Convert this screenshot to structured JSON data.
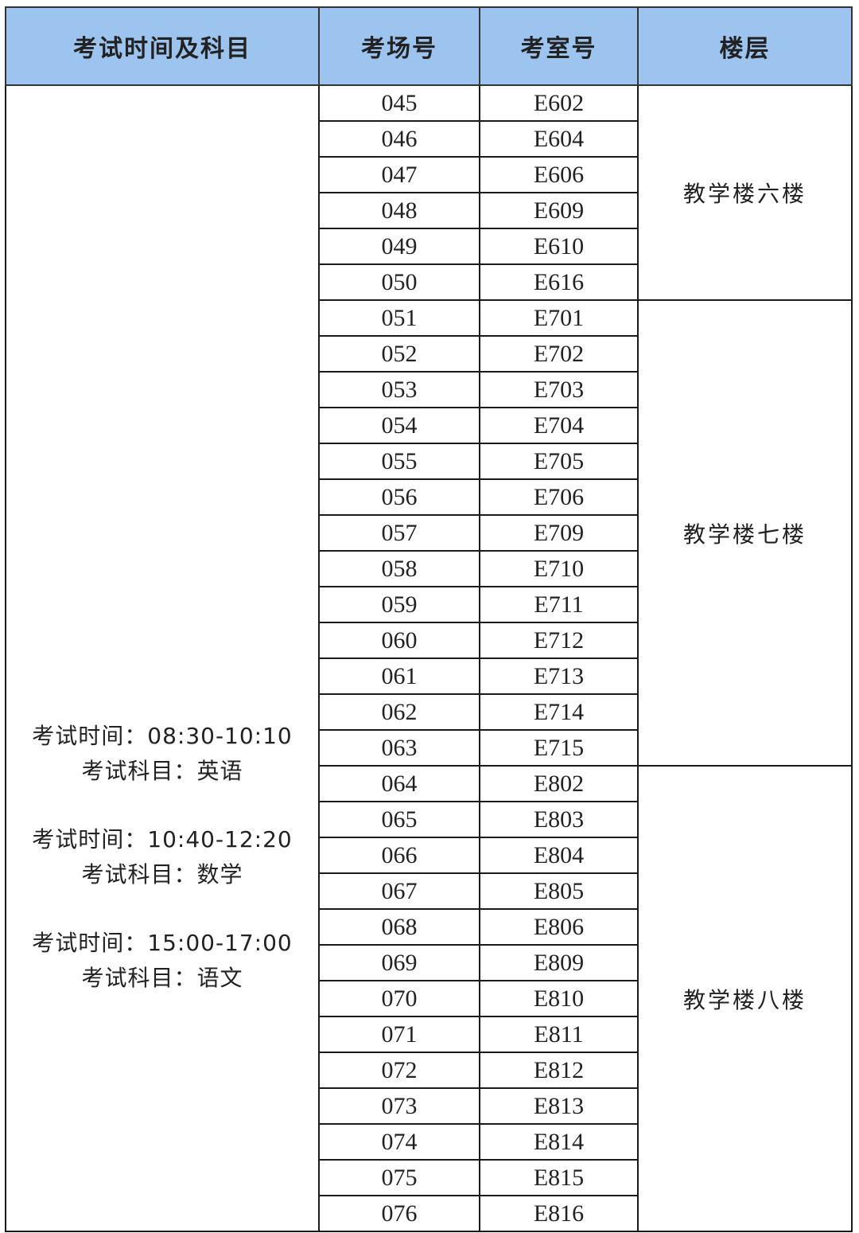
{
  "header": {
    "schedule": "考试时间及科目",
    "site_no": "考场号",
    "room_no": "考室号",
    "floor": "楼层"
  },
  "schedule": [
    {
      "time": "考试时间：08:30-10:10",
      "subject": "考试科目：英语"
    },
    {
      "time": "考试时间：10:40-12:20",
      "subject": "考试科目：数学"
    },
    {
      "time": "考试时间：15:00-17:00",
      "subject": "考试科目：语文"
    }
  ],
  "floors": [
    {
      "label": "教学楼六楼",
      "rows": 6
    },
    {
      "label": "教学楼七楼",
      "rows": 13
    },
    {
      "label": "教学楼八楼",
      "rows": 13
    }
  ],
  "rows": [
    {
      "site": "045",
      "room": "E602"
    },
    {
      "site": "046",
      "room": "E604"
    },
    {
      "site": "047",
      "room": "E606"
    },
    {
      "site": "048",
      "room": "E609"
    },
    {
      "site": "049",
      "room": "E610"
    },
    {
      "site": "050",
      "room": "E616"
    },
    {
      "site": "051",
      "room": "E701"
    },
    {
      "site": "052",
      "room": "E702"
    },
    {
      "site": "053",
      "room": "E703"
    },
    {
      "site": "054",
      "room": "E704"
    },
    {
      "site": "055",
      "room": "E705"
    },
    {
      "site": "056",
      "room": "E706"
    },
    {
      "site": "057",
      "room": "E709"
    },
    {
      "site": "058",
      "room": "E710"
    },
    {
      "site": "059",
      "room": "E711"
    },
    {
      "site": "060",
      "room": "E712"
    },
    {
      "site": "061",
      "room": "E713"
    },
    {
      "site": "062",
      "room": "E714"
    },
    {
      "site": "063",
      "room": "E715"
    },
    {
      "site": "064",
      "room": "E802"
    },
    {
      "site": "065",
      "room": "E803"
    },
    {
      "site": "066",
      "room": "E804"
    },
    {
      "site": "067",
      "room": "E805"
    },
    {
      "site": "068",
      "room": "E806"
    },
    {
      "site": "069",
      "room": "E809"
    },
    {
      "site": "070",
      "room": "E810"
    },
    {
      "site": "071",
      "room": "E811"
    },
    {
      "site": "072",
      "room": "E812"
    },
    {
      "site": "073",
      "room": "E813"
    },
    {
      "site": "074",
      "room": "E814"
    },
    {
      "site": "075",
      "room": "E815"
    },
    {
      "site": "076",
      "room": "E816"
    }
  ],
  "colors": {
    "header_bg": "#9dc3ef",
    "border": "#1a1a1a"
  }
}
